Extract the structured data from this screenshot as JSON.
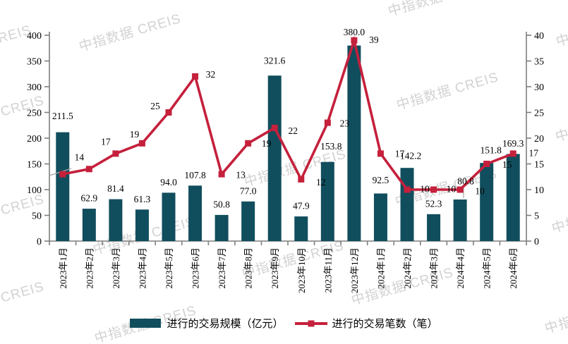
{
  "watermark": {
    "text": "中指数据 CREIS",
    "color": "#d2d2d2"
  },
  "legend": {
    "bar_label": "进行的交易规模（亿元）",
    "line_label": "进行的交易笔数（笔）"
  },
  "colors": {
    "bar": "#114E5D",
    "line": "#C5203C",
    "axis": "#7f7f7f",
    "label": "#000000",
    "leader": "#a6a6a6"
  },
  "chart_data": {
    "type": "bar",
    "subtype": "bar-line-combo",
    "categories": [
      "2023年1月",
      "2023年2月",
      "2023年3月",
      "2023年4月",
      "2023年5月",
      "2023年6月",
      "2023年7月",
      "2023年8月",
      "2023年9月",
      "2023年10月",
      "2023年11月",
      "2023年12月",
      "2024年1月",
      "2024年2月",
      "2024年3月",
      "2024年4月",
      "2024年5月",
      "2024年6月"
    ],
    "series": [
      {
        "name": "进行的交易规模（亿元）",
        "type": "bar",
        "axis": "left",
        "values": [
          211.5,
          62.9,
          81.4,
          61.3,
          94.0,
          107.8,
          50.8,
          77.0,
          321.6,
          47.9,
          153.8,
          380.0,
          92.5,
          142.2,
          52.3,
          80.8,
          151.8,
          169.3
        ],
        "labels": [
          "211.5",
          "62.9",
          "81.4",
          "61.3",
          "94.0",
          "107.8",
          "50.8",
          "77.0",
          "321.6",
          "47.9",
          "153.8",
          "380.0",
          "92.5",
          "142.2",
          "52.3",
          "80.8",
          "151.8",
          "169.3"
        ]
      },
      {
        "name": "进行的交易笔数（笔）",
        "type": "line",
        "axis": "right",
        "values": [
          13,
          14,
          17,
          19,
          25,
          32,
          13,
          19,
          22,
          12,
          23,
          39,
          17,
          10,
          10,
          10,
          15,
          17
        ],
        "labels": [
          "",
          "14",
          "17",
          "19",
          "25",
          "32",
          "13",
          "19",
          "22",
          "12",
          "23",
          "39",
          "17",
          "10",
          "10",
          "10",
          "15",
          "17"
        ]
      }
    ],
    "left_axis": {
      "min": 0,
      "max": 400,
      "step": 50,
      "ticks": [
        "0",
        "50",
        "100",
        "150",
        "200",
        "250",
        "300",
        "350",
        "400"
      ]
    },
    "right_axis": {
      "min": 0,
      "max": 40,
      "step": 5,
      "ticks": [
        "0",
        "5",
        "10",
        "15",
        "20",
        "25",
        "30",
        "35",
        "40"
      ]
    },
    "title": "",
    "xlabel": "",
    "ylabel": "",
    "grid": false,
    "legend_position": "bottom"
  }
}
